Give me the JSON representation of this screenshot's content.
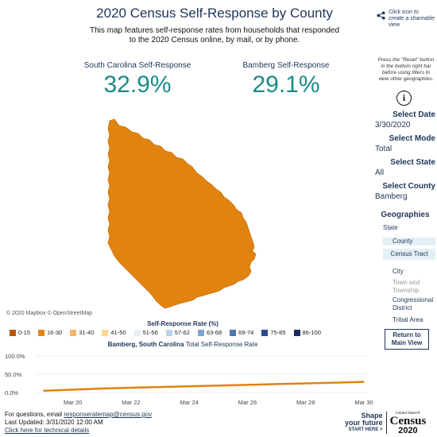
{
  "header": {
    "title": "2020 Census Self-Response by County",
    "subtitle": "This map features self-response rates from households that responded to the 2020 Census online, by mail, or by phone.",
    "share_text": "Click icon to create a shareable view"
  },
  "stats": {
    "left": {
      "label": "South Carolina Self-Response",
      "value": "32.9%"
    },
    "right": {
      "label": "Bamberg Self-Response",
      "value": "29.1%"
    }
  },
  "map": {
    "credit": "© 2020 Mapbox © OpenStreetMap",
    "county_fill": "#e0830f"
  },
  "sidebar": {
    "note": "Press the \"Reset\" button in the bottom right bar before using filters to view other geographies.",
    "filters": [
      {
        "label": "Select Date",
        "value": "3/30/2020"
      },
      {
        "label": "Select Mode",
        "value": "Total"
      },
      {
        "label": "Select State",
        "value": "All"
      },
      {
        "label": "Select County",
        "value": "Bamberg"
      }
    ],
    "geographies_title": "Geographies",
    "geographies": [
      {
        "label": "State",
        "selected": false,
        "disabled": false
      },
      {
        "label": "County",
        "selected": true,
        "disabled": false
      },
      {
        "label": "Census Tract",
        "selected": true,
        "disabled": false
      },
      {
        "label": "City",
        "selected": false,
        "disabled": false
      },
      {
        "label": "Town and Township",
        "selected": false,
        "disabled": true
      },
      {
        "label": "Congressional District",
        "selected": false,
        "disabled": false
      },
      {
        "label": "Tribal Area",
        "selected": false,
        "disabled": false
      }
    ],
    "return_button": "Return to Main View"
  },
  "legend": {
    "title": "Self-Response Rate (%)",
    "items": [
      {
        "label": "0-15",
        "color": "#b35806"
      },
      {
        "label": "16-30",
        "color": "#e0830f"
      },
      {
        "label": "31-40",
        "color": "#f3b563"
      },
      {
        "label": "41-50",
        "color": "#fbd98f"
      },
      {
        "label": "51-56",
        "color": "#e6f0f4"
      },
      {
        "label": "57-62",
        "color": "#b9d3e6"
      },
      {
        "label": "63-68",
        "color": "#7fa6cc"
      },
      {
        "label": "69-74",
        "color": "#4f77b0"
      },
      {
        "label": "75-85",
        "color": "#2c4a94"
      },
      {
        "label": "86-100",
        "color": "#1a2a5e"
      }
    ]
  },
  "chart_title": {
    "bold": "Bamberg, South Carolina",
    "rest": "Total Self-Response Rate"
  },
  "chart_data": {
    "type": "line",
    "x": [
      "Mar 19",
      "Mar 20",
      "Mar 21",
      "Mar 22",
      "Mar 23",
      "Mar 24",
      "Mar 25",
      "Mar 26",
      "Mar 27",
      "Mar 28",
      "Mar 29",
      "Mar 30"
    ],
    "y_ticks": [
      "100.0%",
      "50.0%",
      "0.0%"
    ],
    "x_tick_labels": [
      "Mar 20",
      "Mar 22",
      "Mar 24",
      "Mar 26",
      "Mar 28",
      "Mar 30"
    ],
    "series": [
      {
        "values": [
          5,
          8,
          11,
          13,
          15,
          17,
          19,
          21,
          23,
          25,
          27,
          29.1
        ],
        "color": "#e0830f"
      }
    ],
    "ylim": [
      0,
      100
    ],
    "grid": true
  },
  "footer": {
    "questions_prefix": "For questions, email ",
    "email": "responseratemap@census.gov",
    "updated": "Last Updated: 3/31/2020 12:00 AM",
    "tech_link": "Click here for technical details"
  },
  "brand": {
    "shape_line1": "Shape",
    "shape_line2": "your future",
    "shape_line3": "START HERE >",
    "us": "United States®",
    "census": "Census",
    "year": "2020"
  }
}
